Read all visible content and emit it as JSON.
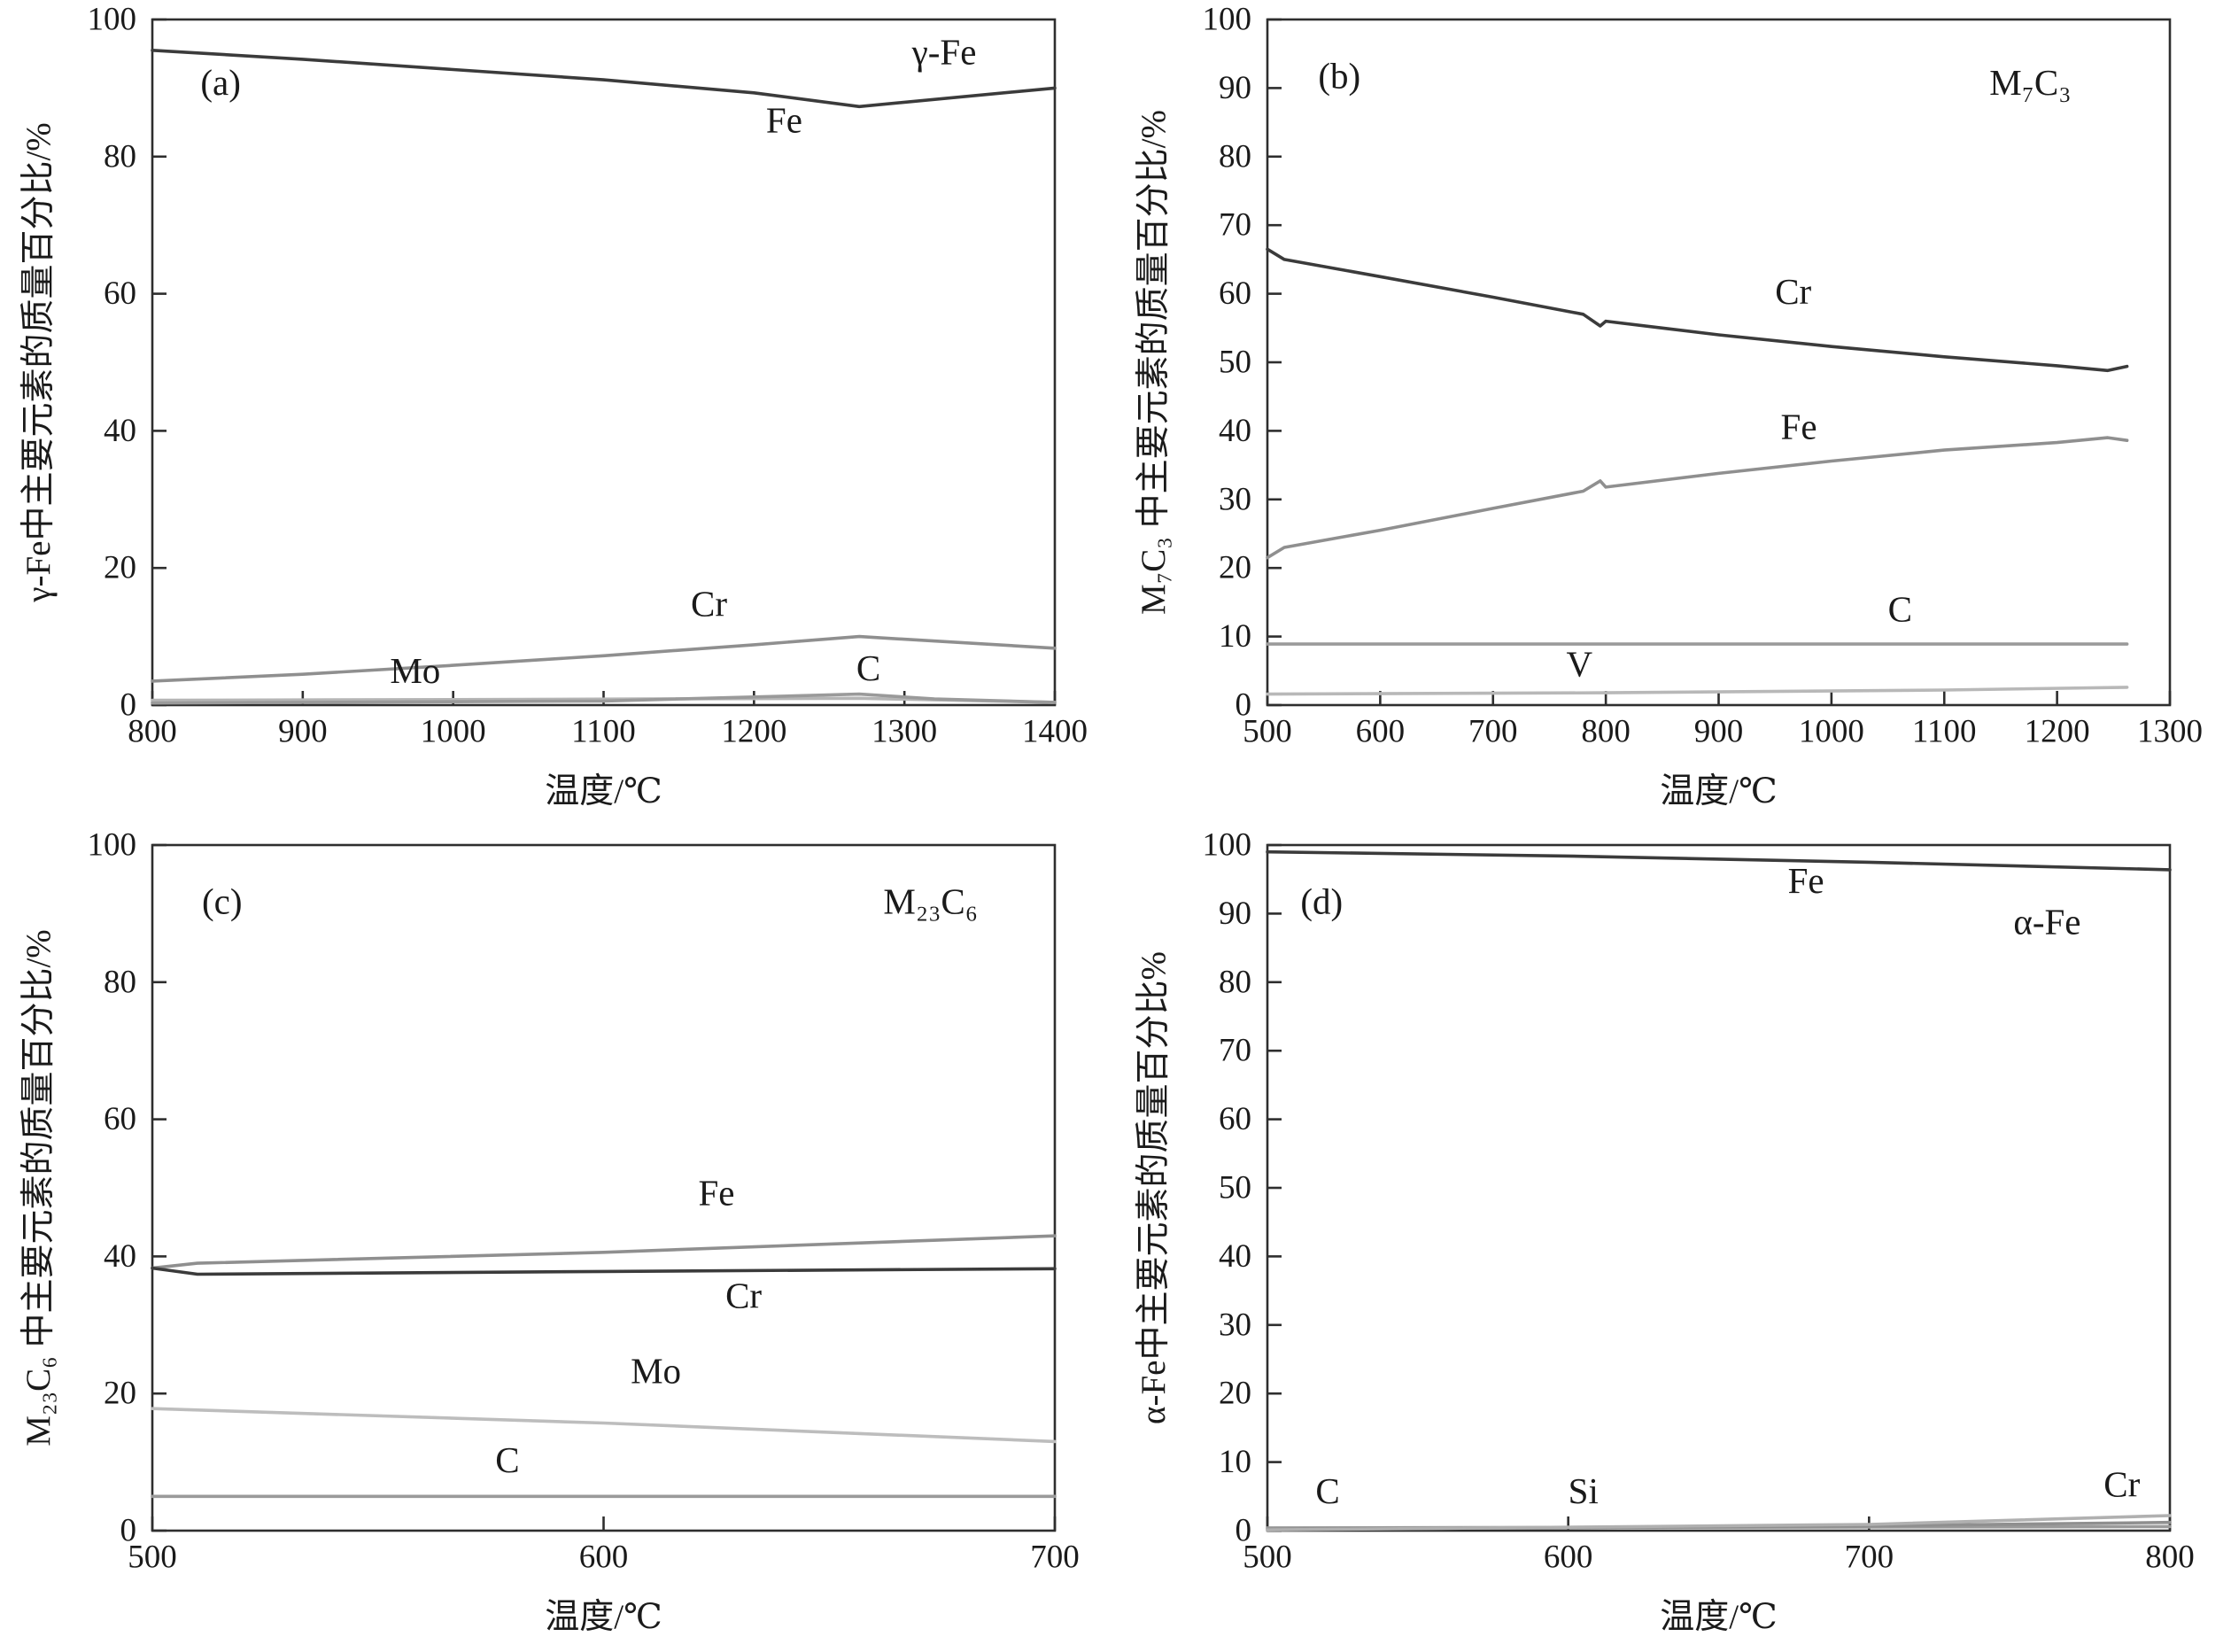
{
  "page": {
    "background": "#ffffff",
    "frame_color": "#2e2e2e"
  },
  "chart_data": [
    {
      "type": "line",
      "panel": "(a)",
      "phase_label": "γ-Fe",
      "xlabel": "温度/℃",
      "ylabel": "γ-Fe中主要元素的质量百分比/%",
      "xlim": [
        800,
        1400
      ],
      "ylim": [
        0,
        100
      ],
      "xticks": [
        800,
        900,
        1000,
        1100,
        1200,
        1300,
        1400
      ],
      "yticks": [
        0,
        20,
        40,
        60,
        80,
        100
      ],
      "grid": false,
      "series": [
        {
          "name": "Fe",
          "color": "#3b3b3b",
          "points": [
            [
              800,
              95.5
            ],
            [
              900,
              94.2
            ],
            [
              1000,
              92.7
            ],
            [
              1100,
              91.2
            ],
            [
              1200,
              89.3
            ],
            [
              1270,
              87.3
            ],
            [
              1400,
              90.0
            ]
          ]
        },
        {
          "name": "Cr",
          "color": "#8f8f8f",
          "points": [
            [
              800,
              3.5
            ],
            [
              900,
              4.5
            ],
            [
              1000,
              5.8
            ],
            [
              1100,
              7.2
            ],
            [
              1200,
              8.8
            ],
            [
              1270,
              10.0
            ],
            [
              1400,
              8.3
            ]
          ]
        },
        {
          "name": "Mo",
          "color": "#b5b5b5",
          "points": [
            [
              800,
              0.7
            ],
            [
              1000,
              0.8
            ],
            [
              1270,
              1.0
            ],
            [
              1400,
              0.4
            ]
          ]
        },
        {
          "name": "C",
          "color": "#9a9a9a",
          "points": [
            [
              800,
              0.3
            ],
            [
              1100,
              0.6
            ],
            [
              1270,
              1.6
            ],
            [
              1320,
              0.9
            ],
            [
              1400,
              0.4
            ]
          ]
        }
      ],
      "annotations": [
        {
          "text": "(a)",
          "x": 832,
          "y": 89,
          "italic": false
        },
        {
          "text": "γ-Fe",
          "x": 1305,
          "y": 93.5,
          "italic": false
        },
        {
          "text": "Fe",
          "x": 1208,
          "y": 83.5,
          "italic": false
        },
        {
          "text": "Cr",
          "x": 1158,
          "y": 13.0,
          "italic": false
        },
        {
          "text": "Mo",
          "x": 958,
          "y": 3.2,
          "italic": false
        },
        {
          "text": "C",
          "x": 1268,
          "y": 3.6,
          "italic": false
        }
      ]
    },
    {
      "type": "line",
      "panel": "(b)",
      "phase_label": "M₇C₃",
      "xlabel": "温度/℃",
      "ylabel": "M₇C₃ 中主要元素的质量百分比/%",
      "xlim": [
        500,
        1300
      ],
      "ylim": [
        0,
        100
      ],
      "xticks": [
        500,
        600,
        700,
        800,
        900,
        1000,
        1100,
        1200,
        1300
      ],
      "yticks": [
        0,
        10,
        20,
        30,
        40,
        50,
        60,
        70,
        80,
        90,
        100
      ],
      "grid": false,
      "series": [
        {
          "name": "Cr",
          "color": "#3b3b3b",
          "points": [
            [
              500,
              66.5
            ],
            [
              515,
              65.0
            ],
            [
              600,
              62.5
            ],
            [
              700,
              59.5
            ],
            [
              780,
              57.0
            ],
            [
              795,
              55.3
            ],
            [
              800,
              56.0
            ],
            [
              850,
              55.0
            ],
            [
              900,
              54.0
            ],
            [
              1000,
              52.3
            ],
            [
              1100,
              50.8
            ],
            [
              1200,
              49.5
            ],
            [
              1245,
              48.8
            ],
            [
              1262,
              49.4
            ]
          ]
        },
        {
          "name": "Fe",
          "color": "#8f8f8f",
          "points": [
            [
              500,
              21.5
            ],
            [
              515,
              23.0
            ],
            [
              600,
              25.5
            ],
            [
              700,
              28.7
            ],
            [
              780,
              31.2
            ],
            [
              795,
              32.7
            ],
            [
              800,
              31.8
            ],
            [
              900,
              33.8
            ],
            [
              1000,
              35.6
            ],
            [
              1100,
              37.2
            ],
            [
              1200,
              38.3
            ],
            [
              1245,
              39.0
            ],
            [
              1262,
              38.6
            ]
          ]
        },
        {
          "name": "C",
          "color": "#9a9a9a",
          "points": [
            [
              500,
              8.9
            ],
            [
              1262,
              8.9
            ]
          ]
        },
        {
          "name": "V",
          "color": "#b8b8b8",
          "points": [
            [
              500,
              1.6
            ],
            [
              800,
              1.8
            ],
            [
              1100,
              2.2
            ],
            [
              1262,
              2.6
            ]
          ]
        }
      ],
      "annotations": [
        {
          "text": "(b)",
          "x": 545,
          "y": 90,
          "italic": false
        },
        {
          "text": "M₇C₃",
          "x": 1140,
          "y": 89,
          "italic": false
        },
        {
          "text": "Cr",
          "x": 950,
          "y": 58.5,
          "italic": false
        },
        {
          "text": "Fe",
          "x": 955,
          "y": 38.8,
          "italic": false
        },
        {
          "text": "C",
          "x": 1050,
          "y": 12.2,
          "italic": false
        },
        {
          "text": "V",
          "x": 765,
          "y": 4.2,
          "italic": false
        }
      ]
    },
    {
      "type": "line",
      "panel": "(c)",
      "phase_label": "M₂₃C₆",
      "xlabel": "温度/℃",
      "ylabel": "M₂₃C₆ 中主要元素的质量百分比/%",
      "xlim": [
        500,
        700
      ],
      "ylim": [
        0,
        100
      ],
      "xticks": [
        500,
        600,
        700
      ],
      "yticks": [
        0,
        20,
        40,
        60,
        80,
        100
      ],
      "grid": false,
      "series": [
        {
          "name": "Fe",
          "color": "#8f8f8f",
          "points": [
            [
              500,
              38.3
            ],
            [
              510,
              39.0
            ],
            [
              600,
              40.6
            ],
            [
              700,
              43.0
            ]
          ]
        },
        {
          "name": "Cr",
          "color": "#3b3b3b",
          "points": [
            [
              500,
              38.3
            ],
            [
              510,
              37.4
            ],
            [
              600,
              37.8
            ],
            [
              700,
              38.2
            ]
          ]
        },
        {
          "name": "Mo",
          "color": "#bdbdbd",
          "points": [
            [
              500,
              17.8
            ],
            [
              600,
              15.7
            ],
            [
              700,
              13.0
            ]
          ]
        },
        {
          "name": "C",
          "color": "#9a9a9a",
          "points": [
            [
              500,
              5.0
            ],
            [
              700,
              5.0
            ]
          ]
        }
      ],
      "annotations": [
        {
          "text": "(c)",
          "x": 511,
          "y": 90,
          "italic": false
        },
        {
          "text": "M₂₃C₆",
          "x": 662,
          "y": 90,
          "italic": false
        },
        {
          "text": "Fe",
          "x": 621,
          "y": 47.5,
          "italic": false
        },
        {
          "text": "Cr",
          "x": 627,
          "y": 32.5,
          "italic": false
        },
        {
          "text": "Mo",
          "x": 606,
          "y": 21.5,
          "italic": false
        },
        {
          "text": "C",
          "x": 576,
          "y": 8.5,
          "italic": false
        }
      ]
    },
    {
      "type": "line",
      "panel": "(d)",
      "phase_label": "α-Fe",
      "xlabel": "温度/℃",
      "ylabel": "α-Fe中主要元素的质量百分比%",
      "xlim": [
        500,
        800
      ],
      "ylim": [
        0,
        100
      ],
      "xticks": [
        500,
        600,
        700,
        800
      ],
      "yticks": [
        0,
        10,
        20,
        30,
        40,
        50,
        60,
        70,
        80,
        90,
        100
      ],
      "grid": false,
      "series": [
        {
          "name": "Fe",
          "color": "#3b3b3b",
          "points": [
            [
              500,
              99.0
            ],
            [
              600,
              98.4
            ],
            [
              700,
              97.5
            ],
            [
              800,
              96.4
            ]
          ]
        },
        {
          "name": "C",
          "color": "#9a9a9a",
          "points": [
            [
              500,
              0.4
            ],
            [
              800,
              0.6
            ]
          ]
        },
        {
          "name": "Si",
          "color": "#8f8f8f",
          "points": [
            [
              500,
              0.2
            ],
            [
              700,
              0.7
            ],
            [
              800,
              1.2
            ]
          ]
        },
        {
          "name": "Cr",
          "color": "#b0b0b0",
          "points": [
            [
              500,
              0.1
            ],
            [
              700,
              0.9
            ],
            [
              800,
              2.2
            ]
          ]
        }
      ],
      "annotations": [
        {
          "text": "(d)",
          "x": 511,
          "y": 90,
          "italic": false
        },
        {
          "text": "Fe",
          "x": 673,
          "y": 93,
          "italic": false
        },
        {
          "text": "α-Fe",
          "x": 748,
          "y": 87,
          "italic": false
        },
        {
          "text": "C",
          "x": 516,
          "y": 4.0,
          "italic": false
        },
        {
          "text": "Si",
          "x": 600,
          "y": 4.0,
          "italic": false
        },
        {
          "text": "Cr",
          "x": 778,
          "y": 5.0,
          "italic": false
        }
      ]
    }
  ]
}
